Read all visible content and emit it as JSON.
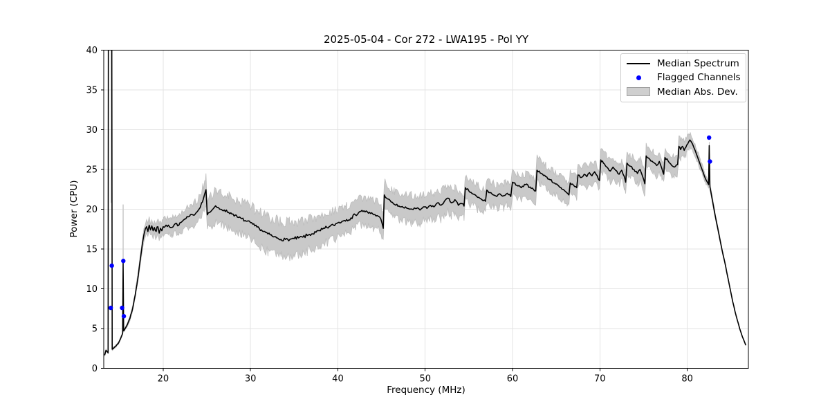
{
  "page": {
    "background": "#ffffff"
  },
  "colors": {
    "grid": "#e3e3e3",
    "spine": "#000000",
    "tick_label": "#000000",
    "band_fill": "#c9c9c9",
    "band_edge": "#bdbdbd",
    "median_line": "#000000",
    "flagged": "#0000ff",
    "legend_border": "#cccccc"
  },
  "chart_data": {
    "type": "line",
    "title": "2025-05-04 - Cor 272 - LWA195 - Pol YY",
    "xlabel": "Frequency (MHz)",
    "ylabel": "Power (CPU)",
    "xlim": [
      13.2,
      87.0
    ],
    "ylim": [
      0,
      40
    ],
    "xticks": [
      20,
      30,
      40,
      50,
      60,
      70,
      80
    ],
    "yticks": [
      0,
      5,
      10,
      15,
      20,
      25,
      30,
      35,
      40
    ],
    "grid": true,
    "legend": {
      "position": "upper-right",
      "entries": [
        {
          "label": "Median Spectrum",
          "type": "line",
          "color": "#000000"
        },
        {
          "label": "Flagged Channels",
          "type": "marker",
          "color": "#0000ff"
        },
        {
          "label": "Median Abs. Dev.",
          "type": "patch",
          "color": "#cfcfcf"
        }
      ]
    },
    "series": [
      {
        "name": "Median Spectrum",
        "type": "line",
        "color": "#000000",
        "points": [
          [
            13.3,
            1.65
          ],
          [
            13.45,
            2.25
          ],
          [
            13.6,
            2.1
          ],
          [
            13.7,
            1.95
          ],
          [
            13.73,
            43
          ],
          [
            14.12,
            43
          ],
          [
            14.17,
            2.4
          ],
          [
            14.3,
            2.5
          ],
          [
            14.6,
            2.8
          ],
          [
            14.9,
            3.2
          ],
          [
            15.15,
            3.8
          ],
          [
            15.3,
            4.2
          ],
          [
            15.36,
            4.4
          ],
          [
            15.42,
            13.2
          ],
          [
            15.48,
            4.7
          ],
          [
            15.6,
            4.9
          ],
          [
            15.9,
            5.5
          ],
          [
            16.2,
            6.3
          ],
          [
            16.5,
            7.5
          ],
          [
            16.8,
            9.2
          ],
          [
            17.1,
            11.3
          ],
          [
            17.4,
            13.8
          ],
          [
            17.6,
            15.5
          ],
          [
            17.8,
            16.8
          ],
          [
            17.95,
            17.5
          ],
          [
            18.1,
            17.8
          ],
          [
            18.25,
            17.2
          ],
          [
            18.4,
            18.0
          ],
          [
            18.55,
            17.4
          ],
          [
            18.7,
            17.9
          ],
          [
            18.85,
            17.3
          ],
          [
            19.0,
            17.7
          ],
          [
            19.2,
            17.2
          ],
          [
            19.4,
            17.8
          ],
          [
            19.55,
            17.0
          ],
          [
            19.7,
            17.6
          ],
          [
            19.85,
            17.3
          ],
          [
            20.0,
            17.8
          ],
          [
            20.2,
            17.8
          ],
          [
            20.6,
            18.0
          ],
          [
            21.0,
            17.7
          ],
          [
            21.4,
            18.2
          ],
          [
            21.8,
            18.0
          ],
          [
            22.2,
            18.5
          ],
          [
            22.6,
            18.8
          ],
          [
            23.0,
            19.1
          ],
          [
            23.4,
            19.3
          ],
          [
            23.8,
            19.6
          ],
          [
            24.1,
            20.0
          ],
          [
            24.4,
            20.8
          ],
          [
            24.6,
            21.3
          ],
          [
            24.75,
            21.9
          ],
          [
            24.9,
            22.45
          ],
          [
            25.05,
            19.3
          ],
          [
            25.3,
            19.6
          ],
          [
            25.6,
            19.9
          ],
          [
            25.9,
            20.3
          ],
          [
            26.2,
            20.2
          ],
          [
            26.6,
            20.0
          ],
          [
            27.0,
            19.9
          ],
          [
            27.5,
            19.6
          ],
          [
            28.0,
            19.4
          ],
          [
            28.5,
            19.0
          ],
          [
            29.0,
            18.8
          ],
          [
            29.5,
            18.5
          ],
          [
            30.0,
            18.3
          ],
          [
            30.5,
            17.9
          ],
          [
            31.0,
            17.6
          ],
          [
            31.5,
            17.2
          ],
          [
            32.0,
            16.9
          ],
          [
            32.5,
            16.6
          ],
          [
            33.0,
            16.4
          ],
          [
            33.5,
            16.2
          ],
          [
            34.0,
            16.2
          ],
          [
            34.5,
            16.2
          ],
          [
            35.0,
            16.3
          ],
          [
            35.5,
            16.4
          ],
          [
            36.0,
            16.5
          ],
          [
            36.5,
            16.7
          ],
          [
            37.0,
            16.9
          ],
          [
            37.5,
            17.1
          ],
          [
            38.0,
            17.3
          ],
          [
            38.5,
            17.6
          ],
          [
            39.0,
            17.8
          ],
          [
            39.5,
            18.0
          ],
          [
            40.0,
            18.3
          ],
          [
            40.5,
            18.5
          ],
          [
            41.0,
            18.7
          ],
          [
            41.5,
            18.9
          ],
          [
            42.0,
            19.3
          ],
          [
            42.5,
            19.7
          ],
          [
            43.0,
            19.8
          ],
          [
            43.5,
            19.5
          ],
          [
            44.0,
            19.4
          ],
          [
            44.5,
            19.2
          ],
          [
            44.8,
            19.0
          ],
          [
            45.05,
            18.3
          ],
          [
            45.2,
            17.6
          ],
          [
            45.32,
            21.8
          ],
          [
            45.7,
            21.3
          ],
          [
            46.1,
            20.9
          ],
          [
            46.5,
            20.6
          ],
          [
            47.0,
            20.4
          ],
          [
            47.5,
            20.2
          ],
          [
            48.0,
            20.1
          ],
          [
            48.5,
            20.0
          ],
          [
            49.0,
            20.1
          ],
          [
            49.4,
            19.9
          ],
          [
            49.8,
            20.3
          ],
          [
            50.2,
            20.1
          ],
          [
            50.6,
            20.5
          ],
          [
            51.0,
            20.3
          ],
          [
            51.4,
            20.8
          ],
          [
            51.8,
            20.5
          ],
          [
            52.2,
            21.0
          ],
          [
            52.6,
            21.4
          ],
          [
            53.0,
            20.8
          ],
          [
            53.4,
            21.2
          ],
          [
            53.8,
            20.5
          ],
          [
            54.2,
            20.7
          ],
          [
            54.45,
            20.4
          ],
          [
            54.6,
            22.7
          ],
          [
            55.0,
            22.3
          ],
          [
            55.5,
            21.9
          ],
          [
            56.0,
            21.5
          ],
          [
            56.5,
            21.2
          ],
          [
            56.9,
            21.0
          ],
          [
            57.05,
            22.4
          ],
          [
            57.4,
            22.1
          ],
          [
            57.8,
            21.8
          ],
          [
            58.2,
            21.6
          ],
          [
            58.6,
            21.9
          ],
          [
            59.0,
            21.7
          ],
          [
            59.4,
            22.0
          ],
          [
            59.8,
            21.6
          ],
          [
            60.0,
            23.4
          ],
          [
            60.5,
            23.0
          ],
          [
            61.0,
            22.7
          ],
          [
            61.5,
            23.1
          ],
          [
            62.0,
            22.8
          ],
          [
            62.4,
            22.5
          ],
          [
            62.65,
            22.3
          ],
          [
            62.8,
            24.9
          ],
          [
            63.3,
            24.5
          ],
          [
            63.8,
            24.1
          ],
          [
            64.3,
            23.7
          ],
          [
            64.8,
            23.3
          ],
          [
            65.3,
            22.9
          ],
          [
            65.8,
            22.5
          ],
          [
            66.2,
            22.1
          ],
          [
            66.45,
            21.8
          ],
          [
            66.6,
            23.3
          ],
          [
            67.0,
            23.0
          ],
          [
            67.35,
            22.7
          ],
          [
            67.5,
            24.3
          ],
          [
            67.9,
            24.0
          ],
          [
            68.2,
            24.4
          ],
          [
            68.5,
            24.1
          ],
          [
            68.8,
            24.6
          ],
          [
            69.1,
            24.2
          ],
          [
            69.4,
            24.7
          ],
          [
            69.7,
            24.2
          ],
          [
            69.95,
            23.6
          ],
          [
            70.1,
            26.2
          ],
          [
            70.4,
            25.8
          ],
          [
            70.8,
            25.3
          ],
          [
            71.2,
            24.8
          ],
          [
            71.5,
            25.3
          ],
          [
            71.8,
            24.9
          ],
          [
            72.2,
            24.4
          ],
          [
            72.5,
            24.9
          ],
          [
            72.8,
            24.1
          ],
          [
            72.95,
            23.4
          ],
          [
            73.1,
            25.8
          ],
          [
            73.5,
            25.4
          ],
          [
            73.9,
            25.0
          ],
          [
            74.3,
            24.5
          ],
          [
            74.6,
            25.0
          ],
          [
            74.9,
            24.1
          ],
          [
            75.15,
            23.2
          ],
          [
            75.3,
            26.7
          ],
          [
            75.7,
            26.3
          ],
          [
            76.1,
            25.9
          ],
          [
            76.5,
            25.5
          ],
          [
            76.8,
            26.0
          ],
          [
            77.1,
            25.1
          ],
          [
            77.3,
            24.4
          ],
          [
            77.45,
            26.5
          ],
          [
            77.8,
            26.1
          ],
          [
            78.1,
            25.7
          ],
          [
            78.5,
            25.3
          ],
          [
            78.9,
            25.6
          ],
          [
            79.05,
            27.9
          ],
          [
            79.25,
            27.5
          ],
          [
            79.45,
            27.9
          ],
          [
            79.65,
            27.4
          ],
          [
            79.85,
            27.8
          ],
          [
            80.05,
            28.2
          ],
          [
            80.3,
            28.7
          ],
          [
            80.6,
            28.2
          ],
          [
            80.9,
            27.4
          ],
          [
            81.2,
            26.5
          ],
          [
            81.5,
            25.6
          ],
          [
            81.8,
            24.7
          ],
          [
            82.1,
            23.8
          ],
          [
            82.45,
            23.1
          ],
          [
            82.52,
            28.0
          ],
          [
            82.6,
            22.8
          ],
          [
            82.9,
            21.0
          ],
          [
            83.2,
            19.2
          ],
          [
            83.6,
            17.0
          ],
          [
            84.0,
            14.8
          ],
          [
            84.4,
            12.8
          ],
          [
            84.8,
            10.6
          ],
          [
            85.2,
            8.4
          ],
          [
            85.6,
            6.6
          ],
          [
            86.0,
            5.0
          ],
          [
            86.3,
            4.0
          ],
          [
            86.6,
            3.2
          ],
          [
            86.7,
            2.9
          ]
        ]
      },
      {
        "name": "Flagged Channels",
        "type": "scatter",
        "color": "#0000ff",
        "points": [
          [
            14.0,
            7.6
          ],
          [
            14.12,
            12.9
          ],
          [
            15.3,
            7.6
          ],
          [
            15.44,
            13.5
          ],
          [
            15.5,
            6.55
          ],
          [
            82.5,
            29.0
          ],
          [
            82.6,
            26.0
          ]
        ]
      },
      {
        "name": "Median Abs. Dev.",
        "type": "band",
        "fill": "#c9c9c9",
        "halfwidth": [
          [
            13.3,
            0.12
          ],
          [
            15.5,
            0.15
          ],
          [
            16.5,
            0.3
          ],
          [
            17.5,
            0.6
          ],
          [
            18.0,
            0.8
          ],
          [
            19.0,
            0.9
          ],
          [
            20.0,
            1.0
          ],
          [
            21.0,
            1.1
          ],
          [
            22.0,
            1.2
          ],
          [
            23.0,
            1.3
          ],
          [
            24.0,
            1.5
          ],
          [
            25.0,
            1.7
          ],
          [
            26.0,
            1.9
          ],
          [
            28.0,
            2.0
          ],
          [
            30.0,
            2.1
          ],
          [
            32.0,
            2.2
          ],
          [
            33.5,
            2.2
          ],
          [
            35.0,
            2.1
          ],
          [
            37.0,
            1.9
          ],
          [
            39.0,
            1.8
          ],
          [
            41.0,
            1.7
          ],
          [
            43.0,
            1.7
          ],
          [
            44.8,
            1.7
          ],
          [
            45.4,
            1.9
          ],
          [
            46.0,
            1.7
          ],
          [
            48.0,
            1.7
          ],
          [
            50.0,
            1.8
          ],
          [
            52.0,
            1.7
          ],
          [
            54.0,
            1.6
          ],
          [
            56.0,
            1.5
          ],
          [
            58.0,
            1.5
          ],
          [
            60.0,
            1.5
          ],
          [
            62.0,
            1.4
          ],
          [
            63.0,
            1.5
          ],
          [
            65.0,
            1.4
          ],
          [
            67.0,
            1.3
          ],
          [
            69.0,
            1.3
          ],
          [
            71.0,
            1.3
          ],
          [
            73.0,
            1.3
          ],
          [
            75.0,
            1.4
          ],
          [
            77.0,
            1.3
          ],
          [
            79.0,
            1.2
          ],
          [
            80.3,
            0.9
          ],
          [
            81.0,
            0.7
          ],
          [
            82.0,
            0.5
          ],
          [
            83.0,
            0.35
          ],
          [
            84.0,
            0.2
          ],
          [
            85.0,
            0.12
          ],
          [
            86.0,
            0.08
          ],
          [
            86.7,
            0.05
          ]
        ],
        "spikes": [
          [
            14.05,
            20.8
          ],
          [
            15.42,
            20.6
          ]
        ]
      }
    ],
    "render_noise": {
      "seed": 7,
      "band_seed": 1234,
      "step_mhz": 0.12,
      "band_step_mhz": 0.15,
      "band_edge_noise_factor": 0.33,
      "band_edge_noise_min": 0.06,
      "median_amplitude_regions": [
        [
          13.2,
          16.0,
          0.04
        ],
        [
          16.0,
          17.9,
          0.1
        ],
        [
          17.9,
          20.0,
          0.28
        ],
        [
          20.0,
          24.8,
          0.18
        ],
        [
          24.8,
          35.0,
          0.18
        ],
        [
          35.0,
          45.0,
          0.22
        ],
        [
          45.0,
          62.0,
          0.15
        ],
        [
          62.0,
          80.5,
          0.12
        ],
        [
          80.5,
          87.0,
          0.04
        ]
      ]
    }
  }
}
